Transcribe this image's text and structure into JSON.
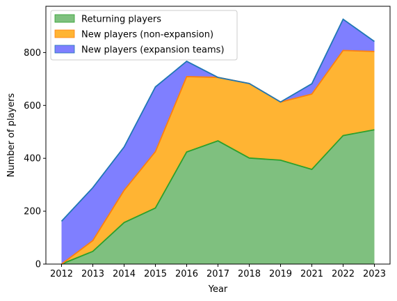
{
  "chart_data": {
    "type": "area",
    "stacked": true,
    "categories": [
      "2012",
      "2013",
      "2014",
      "2015",
      "2016",
      "2017",
      "2018",
      "2019",
      "2021",
      "2022",
      "2023"
    ],
    "series": [
      {
        "name": "Returning players",
        "values": [
          0,
          48,
          157,
          212,
          424,
          466,
          401,
          393,
          358,
          486,
          508
        ],
        "fill": "#7fc07f",
        "line": "#2ca02c"
      },
      {
        "name": "New players (non-expansion)",
        "values": [
          0,
          41,
          122,
          213,
          285,
          240,
          282,
          220,
          285,
          322,
          296
        ],
        "fill": "#ffb433",
        "line": "#ff7f0e"
      },
      {
        "name": "New players (expansion teams)",
        "values": [
          162,
          200,
          164,
          245,
          58,
          0,
          0,
          0,
          39,
          118,
          38
        ],
        "fill": "#7f7fff",
        "line": "#1f77b4"
      }
    ],
    "xlabel": "Year",
    "ylabel": "Number of players",
    "ylim": [
      0,
      975
    ],
    "yticks": [
      0,
      200,
      400,
      600,
      800
    ],
    "grid": false,
    "legend": "top-left"
  }
}
